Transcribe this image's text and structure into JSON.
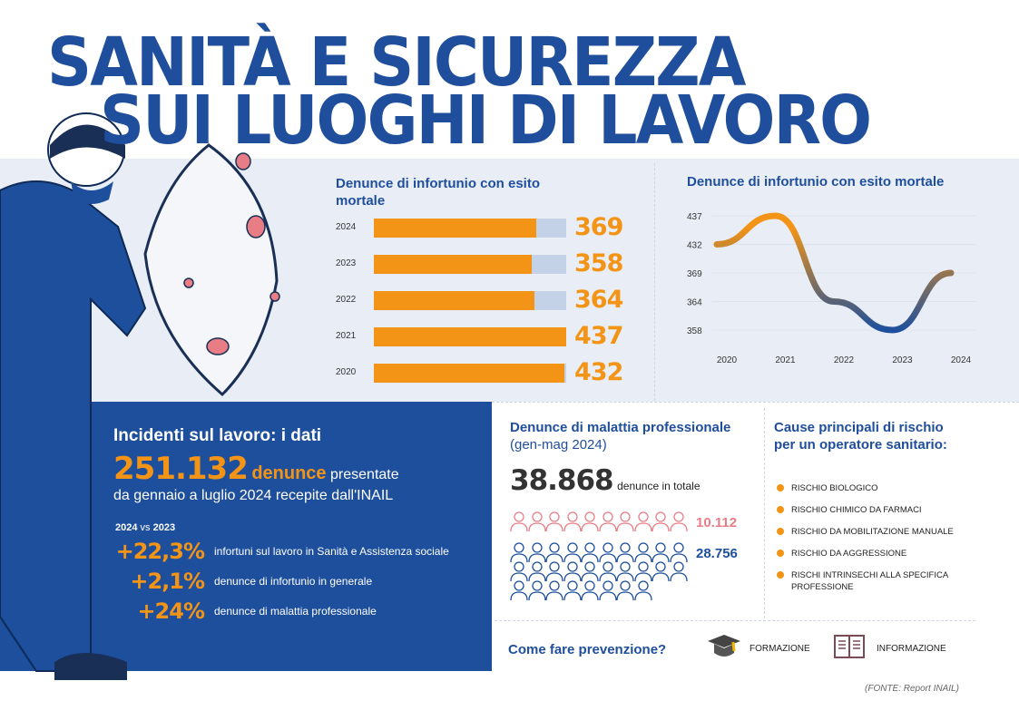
{
  "title": {
    "line1": "SANITÀ E SICUREZZA",
    "line2": "SUI LUOGHI DI LAVORO"
  },
  "colors": {
    "blue": "#1d4f9c",
    "orange": "#f39416",
    "pink": "#e87d86",
    "band": "#e9eef6"
  },
  "chart_data": [
    {
      "type": "bar",
      "title": "Denunce di infortunio con esito mortale",
      "categories": [
        "2024",
        "2023",
        "2022",
        "2021",
        "2020"
      ],
      "values": [
        369,
        358,
        364,
        437,
        432
      ],
      "labels": [
        "369",
        "358",
        "364",
        "437",
        "432"
      ],
      "xlim": [
        0,
        437
      ]
    },
    {
      "type": "line",
      "title": "Denunce di infortunio con esito mortale",
      "x": [
        "2020",
        "2021",
        "2022",
        "2023",
        "2024"
      ],
      "y_ticks": [
        "437",
        "432",
        "369",
        "364",
        "358"
      ],
      "values": [
        432,
        437,
        364,
        358,
        369
      ]
    }
  ],
  "incidents": {
    "heading": "Incidenti sul lavoro: i dati",
    "big_number": "251.132",
    "big_word": "denunce",
    "after": "presentate",
    "line2": "da gennaio a luglio 2024 recepite dall'INAIL",
    "compare_a": "2024",
    "compare_vs": "vs",
    "compare_b": "2023",
    "stats": [
      {
        "value": "+22,3%",
        "label": "infortuni sul lavoro in Sanità e Assistenza sociale"
      },
      {
        "value": "+2,1%",
        "label": "denunce di infortunio in generale"
      },
      {
        "value": "+24%",
        "label": "denunce di malattia professionale"
      }
    ]
  },
  "disease": {
    "heading_bold": "Denunce di malattia professionale",
    "heading_light": "(gen-mag 2024)",
    "total": "38.868",
    "total_label": "denunce in totale",
    "women": {
      "value": "10.112",
      "icons": 10
    },
    "men": {
      "value": "28.756",
      "icons": 28
    }
  },
  "causes": {
    "heading": "Cause principali di rischio per un operatore sanitario:",
    "items": [
      "RISCHIO BIOLOGICO",
      "RISCHIO CHIMICO DA FARMACI",
      "RISCHIO DA MOBILITAZIONE MANUALE",
      "RISCHIO DA AGGRESSIONE",
      "RISCHI INTRINSECHI ALLA SPECIFICA PROFESSIONE"
    ]
  },
  "prevention": {
    "question": "Come fare prevenzione?",
    "items": [
      {
        "icon": "graduation-cap-icon",
        "label": "FORMAZIONE"
      },
      {
        "icon": "book-icon",
        "label": "INFORMAZIONE"
      }
    ]
  },
  "source": "(FONTE: Report INAIL)"
}
